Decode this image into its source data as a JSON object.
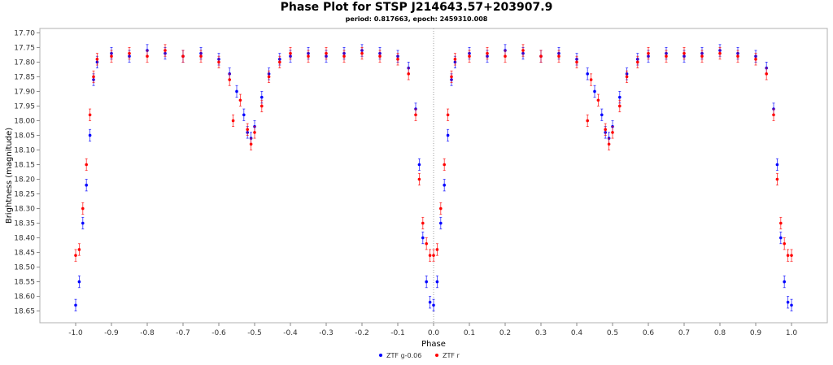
{
  "chart_data": {
    "type": "scatter",
    "title": "Phase Plot for STSP J214643.57+203907.9",
    "subtitle": "period: 0.817663, epoch: 2459310.008",
    "xlabel": "Phase",
    "ylabel": "Brightness (magnitude)",
    "xlim": [
      -1.1,
      1.1
    ],
    "ylim": [
      18.69,
      17.685
    ],
    "y_inverted": true,
    "x_ticks": [
      "-1.0",
      "-0.9",
      "-0.8",
      "-0.7",
      "-0.6",
      "-0.5",
      "-0.4",
      "-0.3",
      "-0.2",
      "-0.1",
      "0.0",
      "0.1",
      "0.2",
      "0.3",
      "0.4",
      "0.5",
      "0.6",
      "0.7",
      "0.8",
      "0.9",
      "1.0"
    ],
    "y_ticks": [
      "17.70",
      "17.75",
      "17.80",
      "17.85",
      "17.90",
      "17.95",
      "18.00",
      "18.05",
      "18.10",
      "18.15",
      "18.20",
      "18.25",
      "18.30",
      "18.35",
      "18.40",
      "18.45",
      "18.50",
      "18.55",
      "18.60",
      "18.65"
    ],
    "grid": false,
    "legend_position": "bottom-center",
    "vertical_reference_line": 0.0,
    "series": [
      {
        "name": "ZTF g-0.06",
        "color": "#0000ff",
        "marker": "dot-with-errorbar",
        "error": 0.02,
        "points": [
          [
            -1.0,
            18.63
          ],
          [
            -0.99,
            18.55
          ],
          [
            -0.98,
            18.35
          ],
          [
            -0.97,
            18.22
          ],
          [
            -0.96,
            18.05
          ],
          [
            -0.95,
            17.86
          ],
          [
            -0.94,
            17.8
          ],
          [
            -0.9,
            17.77
          ],
          [
            -0.85,
            17.78
          ],
          [
            -0.8,
            17.76
          ],
          [
            -0.75,
            17.77
          ],
          [
            -0.7,
            17.78
          ],
          [
            -0.65,
            17.77
          ],
          [
            -0.6,
            17.79
          ],
          [
            -0.57,
            17.84
          ],
          [
            -0.55,
            17.9
          ],
          [
            -0.53,
            17.98
          ],
          [
            -0.52,
            18.04
          ],
          [
            -0.51,
            18.06
          ],
          [
            -0.5,
            18.02
          ],
          [
            -0.48,
            17.92
          ],
          [
            -0.46,
            17.84
          ],
          [
            -0.43,
            17.79
          ],
          [
            -0.4,
            17.78
          ],
          [
            -0.35,
            17.77
          ],
          [
            -0.3,
            17.78
          ],
          [
            -0.25,
            17.77
          ],
          [
            -0.2,
            17.76
          ],
          [
            -0.15,
            17.77
          ],
          [
            -0.1,
            17.78
          ],
          [
            -0.07,
            17.82
          ],
          [
            -0.05,
            17.96
          ],
          [
            -0.04,
            18.15
          ],
          [
            -0.03,
            18.4
          ],
          [
            -0.02,
            18.55
          ],
          [
            -0.01,
            18.62
          ],
          [
            0.0,
            18.63
          ],
          [
            0.01,
            18.55
          ],
          [
            0.02,
            18.35
          ],
          [
            0.03,
            18.22
          ],
          [
            0.04,
            18.05
          ],
          [
            0.05,
            17.86
          ],
          [
            0.06,
            17.8
          ],
          [
            0.1,
            17.77
          ],
          [
            0.15,
            17.78
          ],
          [
            0.2,
            17.76
          ],
          [
            0.25,
            17.77
          ],
          [
            0.3,
            17.78
          ],
          [
            0.35,
            17.77
          ],
          [
            0.4,
            17.79
          ],
          [
            0.43,
            17.84
          ],
          [
            0.45,
            17.9
          ],
          [
            0.47,
            17.98
          ],
          [
            0.48,
            18.04
          ],
          [
            0.49,
            18.06
          ],
          [
            0.5,
            18.02
          ],
          [
            0.52,
            17.92
          ],
          [
            0.54,
            17.84
          ],
          [
            0.57,
            17.79
          ],
          [
            0.6,
            17.78
          ],
          [
            0.65,
            17.77
          ],
          [
            0.7,
            17.78
          ],
          [
            0.75,
            17.77
          ],
          [
            0.8,
            17.76
          ],
          [
            0.85,
            17.77
          ],
          [
            0.9,
            17.78
          ],
          [
            0.93,
            17.82
          ],
          [
            0.95,
            17.96
          ],
          [
            0.96,
            18.15
          ],
          [
            0.97,
            18.4
          ],
          [
            0.98,
            18.55
          ],
          [
            0.99,
            18.62
          ],
          [
            1.0,
            18.63
          ]
        ]
      },
      {
        "name": "ZTF r",
        "color": "#ff0000",
        "marker": "dot-with-errorbar",
        "error": 0.02,
        "points": [
          [
            -1.0,
            18.46
          ],
          [
            -0.99,
            18.44
          ],
          [
            -0.98,
            18.3
          ],
          [
            -0.97,
            18.15
          ],
          [
            -0.96,
            17.98
          ],
          [
            -0.95,
            17.85
          ],
          [
            -0.94,
            17.79
          ],
          [
            -0.9,
            17.78
          ],
          [
            -0.85,
            17.77
          ],
          [
            -0.8,
            17.78
          ],
          [
            -0.75,
            17.76
          ],
          [
            -0.7,
            17.78
          ],
          [
            -0.65,
            17.78
          ],
          [
            -0.6,
            17.8
          ],
          [
            -0.57,
            17.86
          ],
          [
            -0.56,
            18.0
          ],
          [
            -0.54,
            17.93
          ],
          [
            -0.52,
            18.03
          ],
          [
            -0.51,
            18.08
          ],
          [
            -0.5,
            18.04
          ],
          [
            -0.48,
            17.95
          ],
          [
            -0.46,
            17.85
          ],
          [
            -0.43,
            17.8
          ],
          [
            -0.4,
            17.77
          ],
          [
            -0.35,
            17.78
          ],
          [
            -0.3,
            17.77
          ],
          [
            -0.25,
            17.78
          ],
          [
            -0.2,
            17.77
          ],
          [
            -0.15,
            17.78
          ],
          [
            -0.1,
            17.79
          ],
          [
            -0.07,
            17.84
          ],
          [
            -0.05,
            17.98
          ],
          [
            -0.04,
            18.2
          ],
          [
            -0.03,
            18.35
          ],
          [
            -0.02,
            18.42
          ],
          [
            -0.01,
            18.46
          ],
          [
            0.0,
            18.46
          ],
          [
            0.01,
            18.44
          ],
          [
            0.02,
            18.3
          ],
          [
            0.03,
            18.15
          ],
          [
            0.04,
            17.98
          ],
          [
            0.05,
            17.85
          ],
          [
            0.06,
            17.79
          ],
          [
            0.1,
            17.78
          ],
          [
            0.15,
            17.77
          ],
          [
            0.2,
            17.78
          ],
          [
            0.25,
            17.76
          ],
          [
            0.3,
            17.78
          ],
          [
            0.35,
            17.78
          ],
          [
            0.4,
            17.8
          ],
          [
            0.43,
            18.0
          ],
          [
            0.44,
            17.86
          ],
          [
            0.46,
            17.93
          ],
          [
            0.48,
            18.03
          ],
          [
            0.49,
            18.08
          ],
          [
            0.5,
            18.04
          ],
          [
            0.52,
            17.95
          ],
          [
            0.54,
            17.85
          ],
          [
            0.57,
            17.8
          ],
          [
            0.6,
            17.77
          ],
          [
            0.65,
            17.78
          ],
          [
            0.7,
            17.77
          ],
          [
            0.75,
            17.78
          ],
          [
            0.8,
            17.77
          ],
          [
            0.85,
            17.78
          ],
          [
            0.9,
            17.79
          ],
          [
            0.93,
            17.84
          ],
          [
            0.95,
            17.98
          ],
          [
            0.96,
            18.2
          ],
          [
            0.97,
            18.35
          ],
          [
            0.98,
            18.42
          ],
          [
            0.99,
            18.46
          ],
          [
            1.0,
            18.46
          ]
        ]
      }
    ]
  }
}
